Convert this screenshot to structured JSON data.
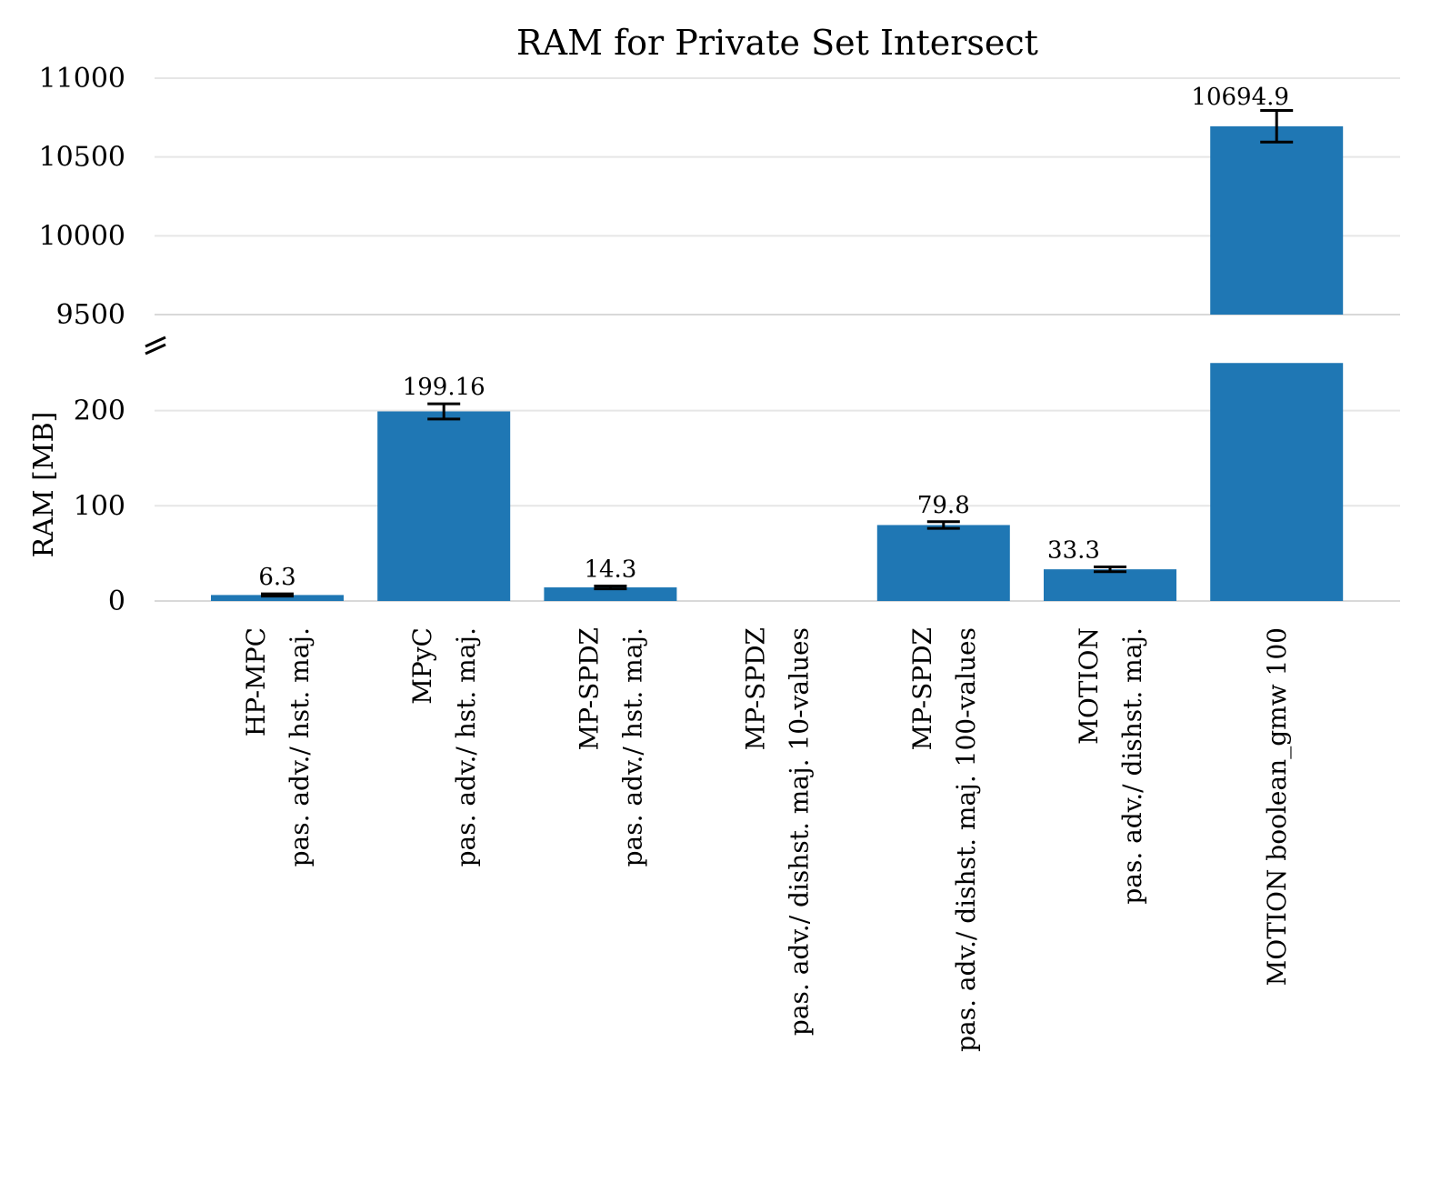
{
  "chart_data": {
    "type": "bar",
    "title": "RAM for Private Set Intersect",
    "ylabel": "RAM [MB]",
    "xlabel": "",
    "broken_axis": true,
    "upper_ylim": [
      9500,
      11000
    ],
    "upper_ticks": [
      "11000",
      "10500",
      "10000",
      "9500"
    ],
    "lower_ylim": [
      0,
      250
    ],
    "lower_ticks": [
      "200",
      "100",
      "0"
    ],
    "grid": true,
    "color": "#1f77b4",
    "categories": [
      [
        "HP-MPC",
        "pas. adv./ hst. maj."
      ],
      [
        "MPyC",
        "pas. adv./ hst. maj."
      ],
      [
        "MP-SPDZ",
        "pas. adv./ hst. maj."
      ],
      [
        "MP-SPDZ",
        "pas. adv./ dishst. maj. 10-values"
      ],
      [
        "MP-SPDZ",
        "pas. adv./ dishst. maj. 100-values"
      ],
      [
        "MOTION",
        "pas. adv./ dishst. maj."
      ],
      [
        "MOTION boolean_gmw 100"
      ]
    ],
    "values": [
      6.3,
      199.16,
      14.3,
      null,
      79.8,
      33.3,
      10694.9
    ],
    "errors": [
      1.2,
      8,
      1.5,
      null,
      3.5,
      2.5,
      100
    ],
    "labels": [
      "6.3",
      "199.16",
      "14.3",
      "",
      "79.8",
      "33.3",
      "10694.9"
    ]
  }
}
